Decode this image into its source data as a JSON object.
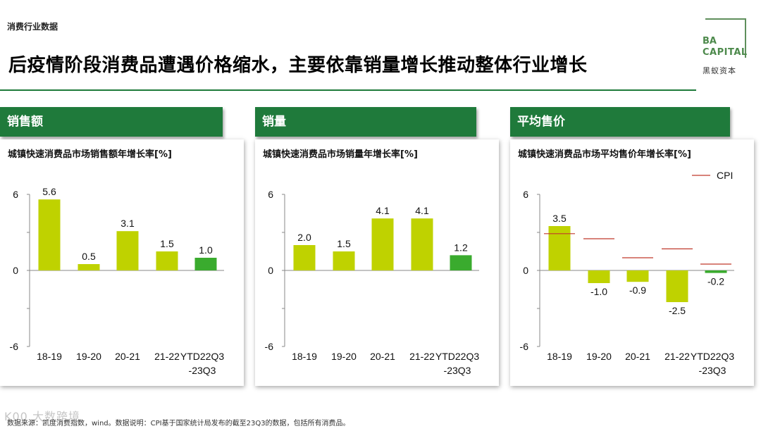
{
  "header": {
    "category": "消费行业数据",
    "title": "后疫情阶段消费品遭遇价格缩水，主要依靠销量增长推动整体行业增长"
  },
  "logo": {
    "line1": "BA",
    "line2": "CAPITAL",
    "cn": "黑蚁资本"
  },
  "colors": {
    "accent_green": "#1f7a3b",
    "bar_lime": "#bfd200",
    "bar_green": "#3aab2e",
    "cpi_red": "#c0392b"
  },
  "sections": [
    {
      "tab": "销售额",
      "chart_title": "城镇快速消费品市场销售额年增长率[%]"
    },
    {
      "tab": "销量",
      "chart_title": "城镇快速消费品市场销量年增长率[%]"
    },
    {
      "tab": "平均售价",
      "chart_title": "城镇快速消费品市场平均售价年增长率[%]",
      "legend_cpi": "CPI"
    }
  ],
  "chart_data": [
    {
      "type": "bar",
      "title": "城镇快速消费品市场销售额年增长率[%]",
      "categories": [
        "18-19",
        "19-20",
        "20-21",
        "21-22",
        "YTD22Q3-23Q3"
      ],
      "category_lines": [
        [
          "18-19"
        ],
        [
          "19-20"
        ],
        [
          "20-21"
        ],
        [
          "21-22"
        ],
        [
          "YTD22Q3",
          "-23Q3"
        ]
      ],
      "values": [
        5.6,
        0.5,
        3.1,
        1.5,
        1.0
      ],
      "labels": [
        "5.6",
        "0.5",
        "3.1",
        "1.5",
        "1.0"
      ],
      "highlight_last": true,
      "ylim": [
        -6,
        6
      ],
      "yticks": [
        "6",
        "0",
        "-6"
      ],
      "grid": false
    },
    {
      "type": "bar",
      "title": "城镇快速消费品市场销量年增长率[%]",
      "categories": [
        "18-19",
        "19-20",
        "20-21",
        "21-22",
        "YTD22Q3-23Q3"
      ],
      "category_lines": [
        [
          "18-19"
        ],
        [
          "19-20"
        ],
        [
          "20-21"
        ],
        [
          "21-22"
        ],
        [
          "YTD22Q3",
          "-23Q3"
        ]
      ],
      "values": [
        2.0,
        1.5,
        4.1,
        4.1,
        1.2
      ],
      "labels": [
        "2.0",
        "1.5",
        "4.1",
        "4.1",
        "1.2"
      ],
      "highlight_last": true,
      "ylim": [
        -6,
        6
      ],
      "yticks": [
        "6",
        "0",
        "-6"
      ],
      "grid": false
    },
    {
      "type": "bar",
      "title": "城镇快速消费品市场平均售价年增长率[%]",
      "categories": [
        "18-19",
        "19-20",
        "20-21",
        "21-22",
        "YTD22Q3-23Q3"
      ],
      "category_lines": [
        [
          "18-19"
        ],
        [
          "19-20"
        ],
        [
          "20-21"
        ],
        [
          "21-22"
        ],
        [
          "YTD22Q3",
          "-23Q3"
        ]
      ],
      "values": [
        3.5,
        -1.0,
        -0.9,
        -2.5,
        -0.2
      ],
      "labels": [
        "3.5",
        "-1.0",
        "-0.9",
        "-2.5",
        "-0.2"
      ],
      "highlight_last": true,
      "ylim": [
        -6,
        6
      ],
      "yticks": [
        "6",
        "0",
        "-6"
      ],
      "grid": false,
      "cpi": {
        "name": "CPI",
        "values": [
          2.9,
          2.5,
          1.0,
          1.7,
          0.5
        ]
      },
      "legend": "top-right"
    }
  ],
  "footer": {
    "note": "数据来源：凯度消费指数，wind。数据说明：CPI基于国家统计局发布的截至23Q3的数据，包括所有消费品。",
    "watermark": "K00 大数跨境"
  }
}
